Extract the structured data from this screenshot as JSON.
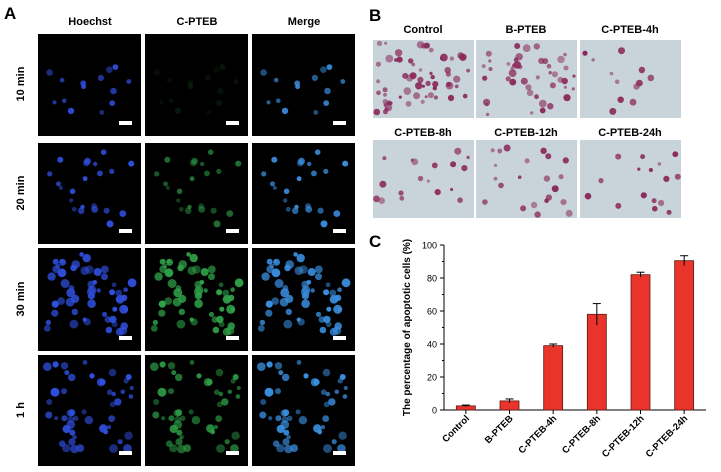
{
  "panel_a": {
    "letter": "A",
    "columns": [
      "Hoechst",
      "C-PTEB",
      "Merge"
    ],
    "rows": [
      "10 min",
      "20 min",
      "30 min",
      "1 h"
    ]
  },
  "panel_b": {
    "letter": "B",
    "labels": [
      "Control",
      "B-PTEB",
      "C-PTEB-4h",
      "C-PTEB-8h",
      "C-PTEB-12h",
      "C-PTEB-24h"
    ]
  },
  "panel_c": {
    "letter": "C"
  },
  "colors": {
    "bar": "#e8342a",
    "hoechst": "#3050e0",
    "pteb": "#2fa44a",
    "merge": "#3a8fe0",
    "stain_bg": "#c9d3da",
    "stain_cell": "#8a2a5a"
  },
  "chart_data": {
    "type": "bar",
    "categories": [
      "Control",
      "B-PTEB",
      "C-PTEB-4h",
      "C-PTEB-8h",
      "C-PTEB-12h",
      "C-PTEB-24h"
    ],
    "values": [
      2.5,
      5.5,
      39,
      58,
      82,
      90.5
    ],
    "errors": [
      0.5,
      1.2,
      1.0,
      6.5,
      1.5,
      3.0
    ],
    "ylabel": "The percentage of apoptotic cells (%)",
    "xlabel": "",
    "ylim": [
      0,
      100
    ],
    "yticks": [
      0,
      20,
      40,
      60,
      80,
      100
    ],
    "grid": false
  }
}
